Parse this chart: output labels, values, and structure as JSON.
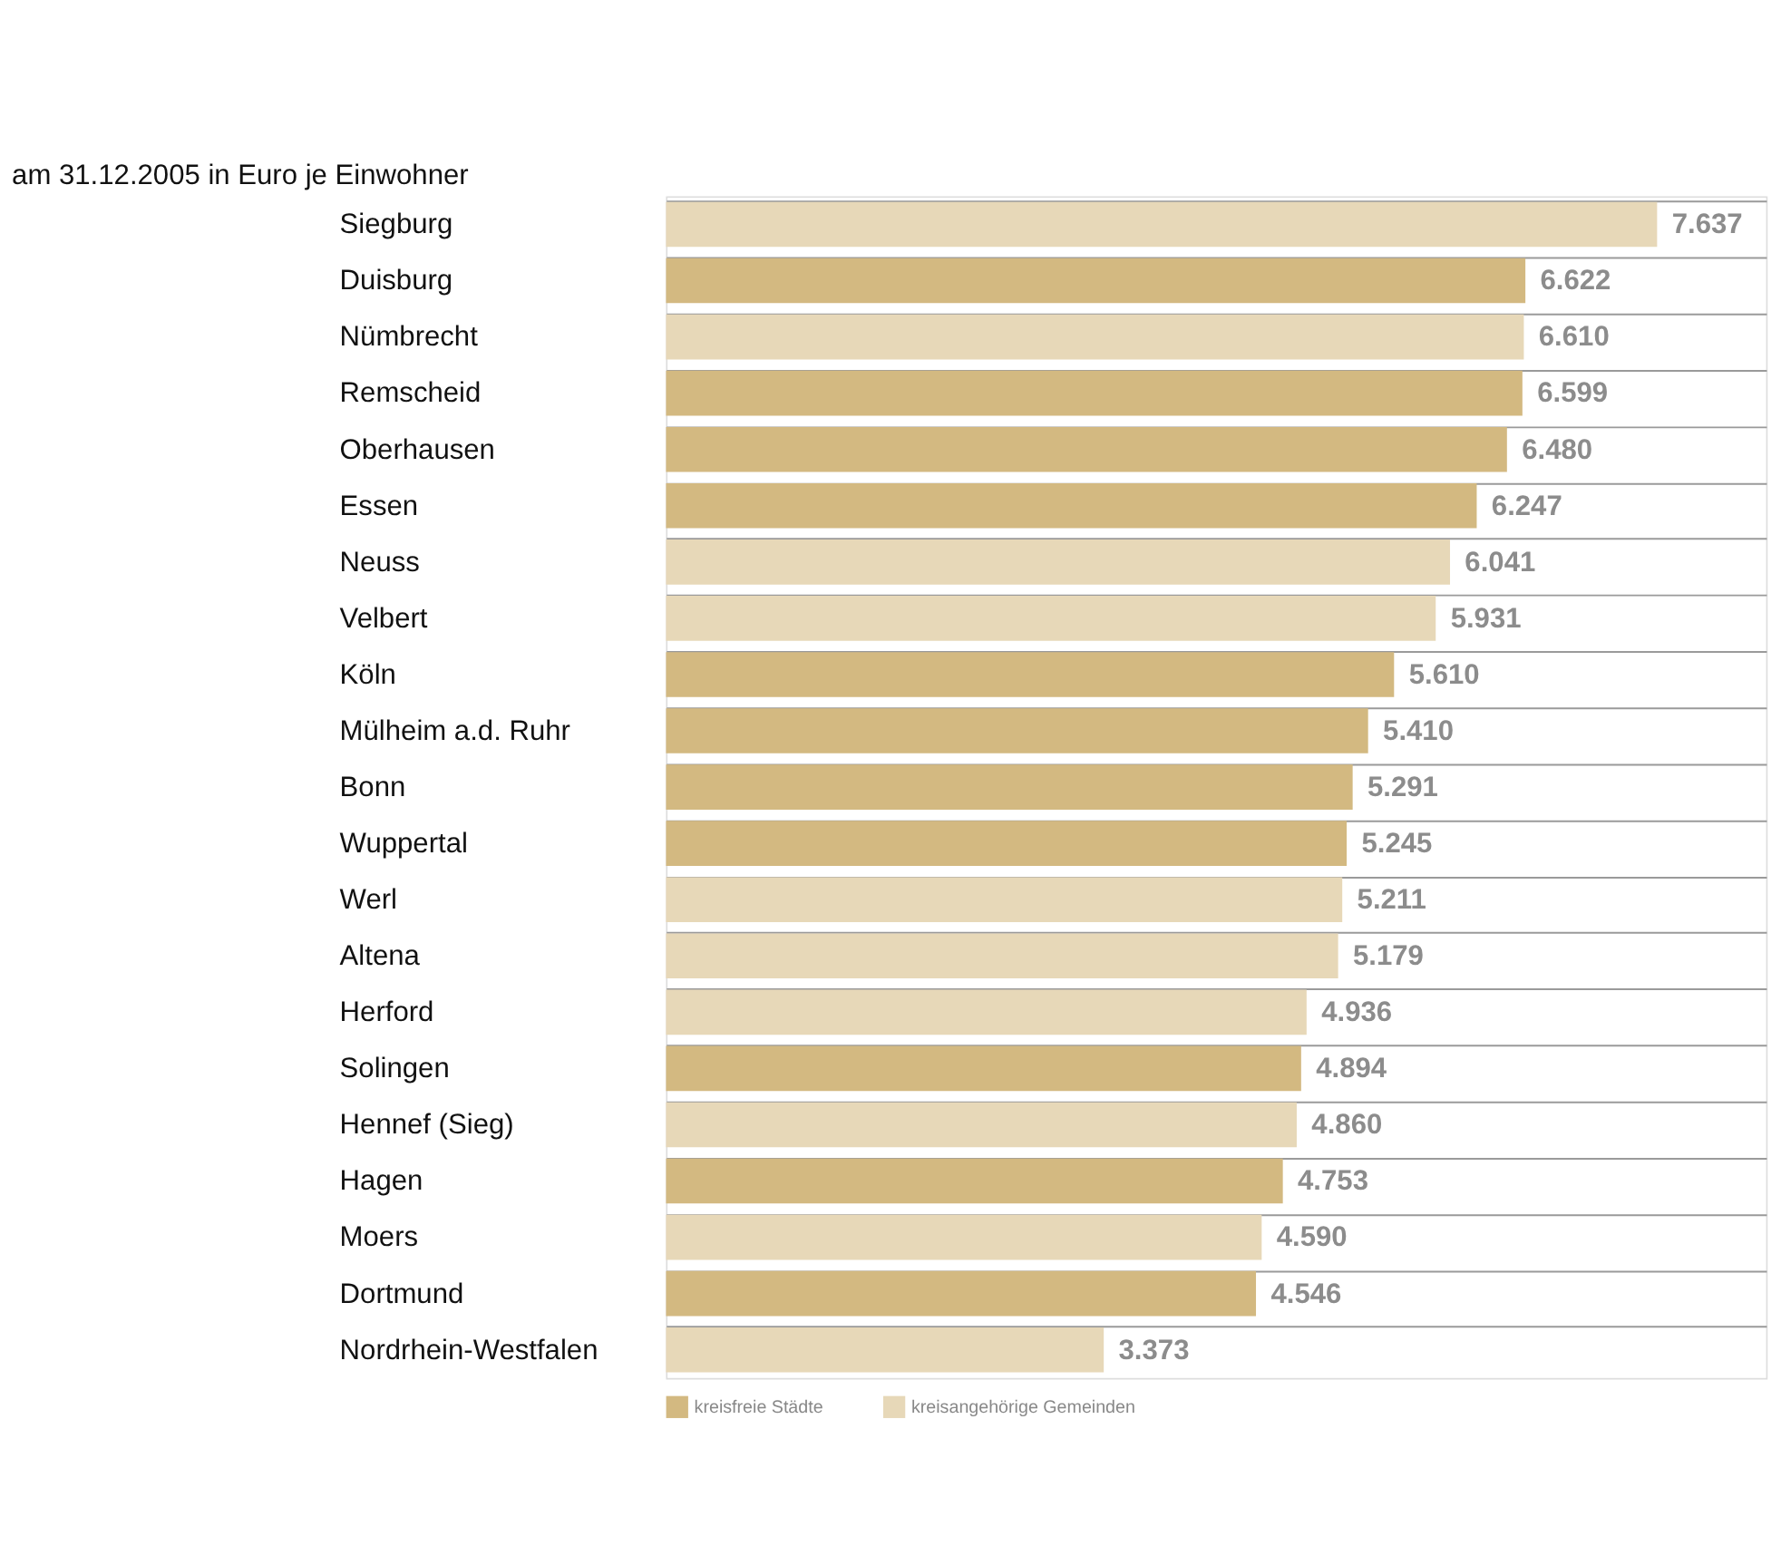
{
  "chart_data": {
    "type": "bar",
    "orientation": "horizontal",
    "title": "am 31.12.2005 in Euro je Einwohner",
    "categories": [
      "Siegburg",
      "Duisburg",
      "Nümbrecht",
      "Remscheid",
      "Oberhausen",
      "Essen",
      "Neuss",
      "Velbert",
      "Köln",
      "Mülheim a.d. Ruhr",
      "Bonn",
      "Wuppertal",
      "Werl",
      "Altena",
      "Herford",
      "Solingen",
      "Hennef (Sieg)",
      "Hagen",
      "Moers",
      "Dortmund",
      "Nordrhein-Westfalen"
    ],
    "series": [
      {
        "name": "kreisfreie Städte",
        "color": "#d3b981",
        "values": [
          null,
          6622,
          null,
          6599,
          6480,
          6247,
          null,
          null,
          5610,
          5410,
          5291,
          5245,
          null,
          null,
          null,
          4894,
          null,
          4753,
          null,
          4546,
          null
        ],
        "value_labels": [
          null,
          "6.622",
          null,
          "6.599",
          "6.480",
          "6.247",
          null,
          null,
          "5.610",
          "5.410",
          "5.291",
          "5.245",
          null,
          null,
          null,
          "4.894",
          null,
          "4.753",
          null,
          "4.546",
          null
        ]
      },
      {
        "name": "kreisangehörige Gemeinden",
        "color": "#e7d8b8",
        "values": [
          7637,
          null,
          6610,
          null,
          null,
          null,
          6041,
          5931,
          null,
          null,
          null,
          null,
          5211,
          5179,
          4936,
          null,
          4860,
          null,
          4590,
          null,
          3373
        ],
        "value_labels": [
          "7.637",
          null,
          "6.610",
          null,
          null,
          null,
          "6.041",
          "5.931",
          null,
          null,
          null,
          null,
          "5.211",
          "5.179",
          "4.936",
          null,
          "4.860",
          null,
          "4.590",
          null,
          "3.373"
        ]
      }
    ],
    "grid": "y",
    "legend": "bottom left",
    "tick_labels": "y"
  }
}
